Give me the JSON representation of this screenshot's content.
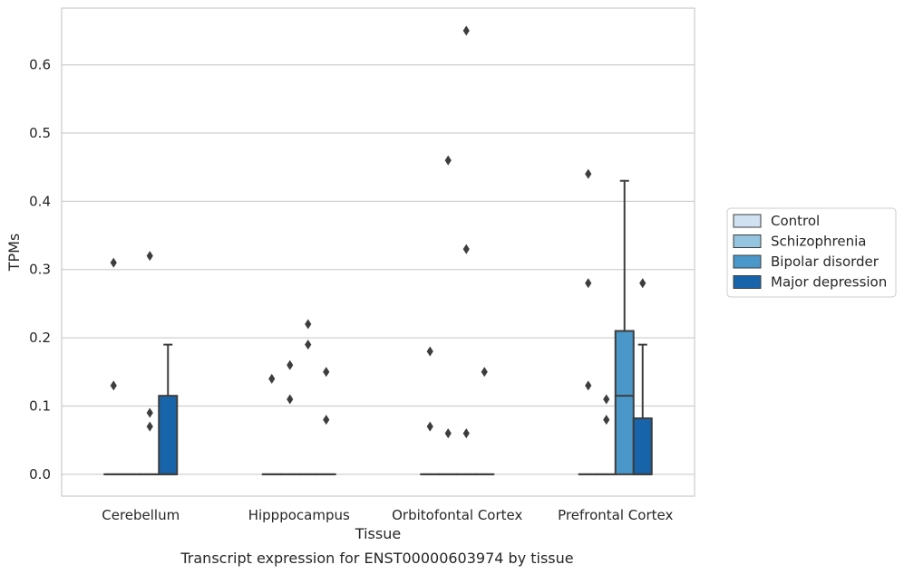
{
  "chart_data": {
    "type": "box",
    "caption": "Transcript expression for ENST00000603974 by tissue",
    "xlabel": "Tissue",
    "ylabel": "TPMs",
    "ylim": [
      -0.032,
      0.683
    ],
    "yticks": [
      "0.0",
      "0.1",
      "0.2",
      "0.3",
      "0.4",
      "0.5",
      "0.6"
    ],
    "grid": "horizontal",
    "legend_position": "right",
    "categories": [
      "Cerebellum",
      "Hipppocampus",
      "Orbitofontal Cortex",
      "Prefrontal Cortex"
    ],
    "series": [
      {
        "name": "Control",
        "color": "#d0e1f2"
      },
      {
        "name": "Schizophrenia",
        "color": "#94c4df"
      },
      {
        "name": "Bipolar disorder",
        "color": "#4a98c9"
      },
      {
        "name": "Major depression",
        "color": "#1764ab"
      }
    ],
    "boxes": [
      [
        {
          "q1": 0,
          "median": 0,
          "q3": 0,
          "whisker_low": 0,
          "whisker_high": 0,
          "outliers": [
            0.31,
            0.13
          ]
        },
        {
          "q1": 0,
          "median": 0,
          "q3": 0,
          "whisker_low": 0,
          "whisker_high": 0,
          "outliers": []
        },
        {
          "q1": 0,
          "median": 0,
          "q3": 0,
          "whisker_low": 0,
          "whisker_high": 0,
          "outliers": [
            0.32,
            0.09,
            0.07
          ]
        },
        {
          "q1": 0,
          "median": 0,
          "q3": 0.115,
          "whisker_low": 0,
          "whisker_high": 0.19,
          "outliers": []
        }
      ],
      [
        {
          "q1": 0,
          "median": 0,
          "q3": 0,
          "whisker_low": 0,
          "whisker_high": 0,
          "outliers": [
            0.14
          ]
        },
        {
          "q1": 0,
          "median": 0,
          "q3": 0,
          "whisker_low": 0,
          "whisker_high": 0,
          "outliers": [
            0.16,
            0.11
          ]
        },
        {
          "q1": 0,
          "median": 0,
          "q3": 0,
          "whisker_low": 0,
          "whisker_high": 0,
          "outliers": [
            0.22,
            0.19
          ]
        },
        {
          "q1": 0,
          "median": 0,
          "q3": 0,
          "whisker_low": 0,
          "whisker_high": 0,
          "outliers": [
            0.15,
            0.08
          ]
        }
      ],
      [
        {
          "q1": 0,
          "median": 0,
          "q3": 0,
          "whisker_low": 0,
          "whisker_high": 0,
          "outliers": [
            0.18,
            0.07
          ]
        },
        {
          "q1": 0,
          "median": 0,
          "q3": 0,
          "whisker_low": 0,
          "whisker_high": 0,
          "outliers": [
            0.46,
            0.06
          ]
        },
        {
          "q1": 0,
          "median": 0,
          "q3": 0,
          "whisker_low": 0,
          "whisker_high": 0,
          "outliers": [
            0.65,
            0.33,
            0.06
          ]
        },
        {
          "q1": 0,
          "median": 0,
          "q3": 0,
          "whisker_low": 0,
          "whisker_high": 0,
          "outliers": [
            0.15
          ]
        }
      ],
      [
        {
          "q1": 0,
          "median": 0,
          "q3": 0,
          "whisker_low": 0,
          "whisker_high": 0,
          "outliers": [
            0.44,
            0.28,
            0.13
          ]
        },
        {
          "q1": 0,
          "median": 0,
          "q3": 0,
          "whisker_low": 0,
          "whisker_high": 0,
          "outliers": [
            0.11,
            0.08
          ]
        },
        {
          "q1": 0,
          "median": 0.115,
          "q3": 0.21,
          "whisker_low": 0,
          "whisker_high": 0.43,
          "outliers": []
        },
        {
          "q1": 0,
          "median": 0,
          "q3": 0.082,
          "whisker_low": 0,
          "whisker_high": 0.19,
          "outliers": [
            0.28
          ]
        }
      ]
    ]
  }
}
